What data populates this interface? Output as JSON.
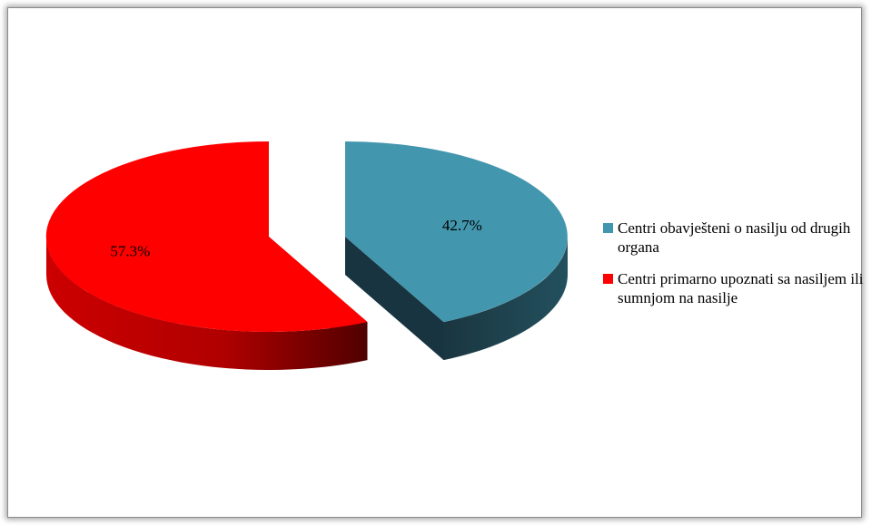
{
  "colors": {
    "background": "#ffffff",
    "frame_border": "#8a8a8a"
  },
  "chart_data": {
    "type": "pie",
    "style": "3d-exploded",
    "title": "",
    "legend_position": "right",
    "slices": [
      {
        "label": "Centri obavješteni o nasilju od drugih organa",
        "value": 42.7,
        "value_label": "42.7%",
        "color": "#4296ae",
        "side_color": "#1d3f4a"
      },
      {
        "label": "Centri primarno upoznati sa nasiljem ili sumnjom na nasilje",
        "value": 57.3,
        "value_label": "57.3%",
        "color": "#ff0000",
        "side_color": "#a30000"
      }
    ]
  }
}
